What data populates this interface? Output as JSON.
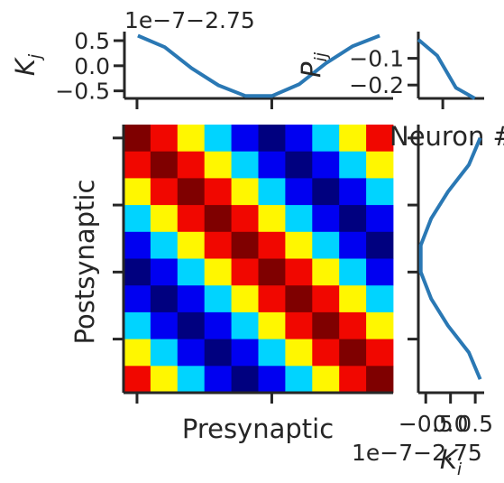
{
  "chart_data": [
    {
      "type": "heatmap",
      "xlabel": "Presynaptic",
      "ylabel": "Postsynaptic",
      "size": 10,
      "colormap": "jet",
      "vlim": [
        0,
        5
      ],
      "palette": [
        "#00007f",
        "#0000f1",
        "#00d4ff",
        "#fff700",
        "#f10700",
        "#7f0000"
      ],
      "values": [
        [
          5,
          4,
          3,
          2,
          1,
          0,
          1,
          2,
          3,
          4
        ],
        [
          4,
          5,
          4,
          3,
          2,
          1,
          0,
          1,
          2,
          3
        ],
        [
          3,
          4,
          5,
          4,
          3,
          2,
          1,
          0,
          1,
          2
        ],
        [
          2,
          3,
          4,
          5,
          4,
          3,
          2,
          1,
          0,
          1
        ],
        [
          1,
          2,
          3,
          4,
          5,
          4,
          3,
          2,
          1,
          0
        ],
        [
          0,
          1,
          2,
          3,
          4,
          5,
          4,
          3,
          2,
          1
        ],
        [
          1,
          0,
          1,
          2,
          3,
          4,
          5,
          4,
          3,
          2
        ],
        [
          2,
          1,
          0,
          1,
          2,
          3,
          4,
          5,
          4,
          3
        ],
        [
          3,
          2,
          1,
          0,
          1,
          2,
          3,
          4,
          5,
          4
        ],
        [
          4,
          3,
          2,
          1,
          0,
          1,
          2,
          3,
          4,
          5
        ]
      ],
      "grid": false
    },
    {
      "type": "line",
      "ylabel": "K_j",
      "offset_text": "1e−7−2.75",
      "x": [
        0,
        1,
        2,
        3,
        4,
        5,
        6,
        7,
        8,
        9
      ],
      "y": [
        0.6,
        0.37,
        -0.05,
        -0.39,
        -0.6,
        -0.6,
        -0.37,
        0.05,
        0.39,
        0.6
      ],
      "xlim": [
        -0.5,
        9.5
      ],
      "ylim": [
        -0.65,
        0.68
      ],
      "yticks": [
        0.5,
        0.0,
        -0.5
      ],
      "ytick_labels": [
        "0.5",
        "0.0",
        "−0.5"
      ],
      "color": "#2a78b4"
    },
    {
      "type": "line",
      "ylabel": "P_ij",
      "xlabel": "Neuron #",
      "x": [
        0,
        1,
        2,
        3
      ],
      "y": [
        -0.03,
        -0.09,
        -0.21,
        -0.25
      ],
      "xlim": [
        0,
        3.5
      ],
      "ylim": [
        -0.25,
        0
      ],
      "yticks": [
        -0.1,
        -0.2
      ],
      "ytick_labels": [
        "−0.1",
        "−0.2"
      ],
      "color": "#2a78b4"
    },
    {
      "type": "line",
      "xlabel": "K_i",
      "offset_text": "1e−7−2.75",
      "orientation": "vertical",
      "x": [
        0.6,
        0.37,
        -0.05,
        -0.39,
        -0.6,
        -0.6,
        -0.39,
        -0.05,
        0.37,
        0.6
      ],
      "y": [
        0,
        1,
        2,
        3,
        4,
        5,
        6,
        7,
        8,
        9
      ],
      "xlim": [
        -0.65,
        0.68
      ],
      "xticks": [
        -0.5,
        0.0,
        0.5
      ],
      "xtick_labels": [
        "−0.5",
        "0.0",
        "0.5"
      ],
      "color": "#2a78b4"
    }
  ]
}
